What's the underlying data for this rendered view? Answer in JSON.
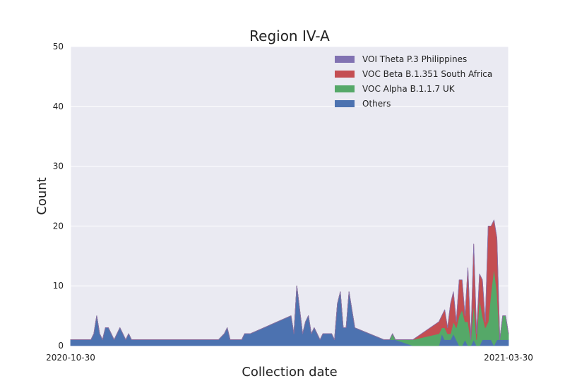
{
  "chart_data": {
    "type": "area",
    "stacked": true,
    "title": "Region IV-A",
    "xlabel": "Collection date",
    "ylabel": "Count",
    "ylim": [
      0,
      50
    ],
    "yticks": [
      0,
      10,
      20,
      30,
      40,
      50
    ],
    "xlim": [
      "2020-10-30",
      "2021-03-30"
    ],
    "xticks": [
      "2020-10-30",
      "2021-03-30"
    ],
    "grid": true,
    "legend_position": "top-right",
    "x": [
      "2020-10-30",
      "2020-11-06",
      "2020-11-07",
      "2020-11-08",
      "2020-11-09",
      "2020-11-10",
      "2020-11-11",
      "2020-11-12",
      "2020-11-13",
      "2020-11-14",
      "2020-11-15",
      "2020-11-16",
      "2020-11-17",
      "2020-11-18",
      "2020-11-19",
      "2020-11-20",
      "2020-12-20",
      "2020-12-22",
      "2020-12-23",
      "2020-12-24",
      "2020-12-28",
      "2020-12-29",
      "2020-12-31",
      "2021-01-14",
      "2021-01-15",
      "2021-01-16",
      "2021-01-17",
      "2021-01-18",
      "2021-01-19",
      "2021-01-20",
      "2021-01-21",
      "2021-01-22",
      "2021-01-23",
      "2021-01-24",
      "2021-01-25",
      "2021-01-26",
      "2021-01-27",
      "2021-01-28",
      "2021-01-29",
      "2021-01-30",
      "2021-01-31",
      "2021-02-01",
      "2021-02-02",
      "2021-02-03",
      "2021-02-05",
      "2021-02-15",
      "2021-02-16",
      "2021-02-17",
      "2021-02-18",
      "2021-02-19",
      "2021-02-25",
      "2021-03-06",
      "2021-03-07",
      "2021-03-08",
      "2021-03-09",
      "2021-03-10",
      "2021-03-11",
      "2021-03-12",
      "2021-03-13",
      "2021-03-14",
      "2021-03-15",
      "2021-03-16",
      "2021-03-17",
      "2021-03-18",
      "2021-03-19",
      "2021-03-20",
      "2021-03-21",
      "2021-03-22",
      "2021-03-23",
      "2021-03-24",
      "2021-03-25",
      "2021-03-26",
      "2021-03-27",
      "2021-03-28",
      "2021-03-29",
      "2021-03-30"
    ],
    "series": [
      {
        "name": "Others",
        "color": "#4c72b0",
        "values": [
          1,
          1,
          2,
          5,
          2,
          1,
          3,
          3,
          2,
          1,
          2,
          3,
          2,
          1,
          2,
          1,
          1,
          2,
          3,
          1,
          1,
          2,
          2,
          5,
          2,
          10,
          6,
          2,
          4,
          5,
          2,
          3,
          2,
          1,
          2,
          2,
          2,
          2,
          1,
          7,
          9,
          3,
          3,
          9,
          3,
          1,
          1,
          1,
          1,
          1,
          0,
          0,
          2,
          1,
          1,
          1,
          2,
          1,
          0,
          0,
          1,
          0,
          0,
          1,
          0,
          0,
          1,
          1,
          1,
          1,
          0,
          1,
          1,
          1,
          1,
          1
        ]
      },
      {
        "name": "VOC Alpha B.1.1.7 UK",
        "color": "#55a868",
        "values": [
          0,
          0,
          0,
          0,
          0,
          0,
          0,
          0,
          0,
          0,
          0,
          0,
          0,
          0,
          0,
          0,
          0,
          0,
          0,
          0,
          0,
          0,
          0,
          0,
          0,
          0,
          0,
          0,
          0,
          0,
          0,
          0,
          0,
          0,
          0,
          0,
          0,
          0,
          0,
          0,
          0,
          0,
          0,
          0,
          0,
          0,
          0,
          0,
          1,
          0,
          1,
          2,
          1,
          2,
          1,
          1,
          2,
          2,
          5,
          6,
          3,
          4,
          1,
          6,
          1,
          8,
          4,
          2,
          3,
          8,
          13,
          8,
          0,
          4,
          4,
          1
        ]
      },
      {
        "name": "VOC Beta B.1.351 South Africa",
        "color": "#c44e52",
        "values": [
          0,
          0,
          0,
          0,
          0,
          0,
          0,
          0,
          0,
          0,
          0,
          0,
          0,
          0,
          0,
          0,
          0,
          0,
          0,
          0,
          0,
          0,
          0,
          0,
          0,
          0,
          0,
          0,
          0,
          0,
          0,
          0,
          0,
          0,
          0,
          0,
          0,
          0,
          0,
          0,
          0,
          0,
          0,
          0,
          0,
          0,
          0,
          0,
          0,
          0,
          0,
          2,
          2,
          3,
          1,
          5,
          5,
          1,
          6,
          5,
          1,
          9,
          0,
          10,
          1,
          4,
          6,
          1,
          16,
          11,
          8,
          9,
          0,
          0,
          0,
          0
        ]
      },
      {
        "name": "VOI Theta P.3 Philippines",
        "color": "#8172b2",
        "values": [
          0,
          0,
          0,
          0,
          0,
          0,
          0,
          0,
          0,
          0,
          0,
          0,
          0,
          0,
          0,
          0,
          0,
          0,
          0,
          0,
          0,
          0,
          0,
          0,
          0,
          0,
          0,
          0,
          0,
          0,
          0,
          0,
          0,
          0,
          0,
          0,
          0,
          0,
          0,
          0,
          0,
          0,
          0,
          0,
          0,
          0,
          0,
          0,
          0,
          0,
          0,
          0,
          0,
          0,
          0,
          0,
          0,
          0,
          0,
          0,
          0,
          0,
          0,
          0,
          0,
          0,
          0,
          0,
          0,
          0,
          0,
          0,
          0,
          0,
          0,
          0
        ]
      }
    ],
    "legend": [
      {
        "label": "VOI Theta P.3 Philippines",
        "color": "#8172b2"
      },
      {
        "label": "VOC Beta B.1.351 South Africa",
        "color": "#c44e52"
      },
      {
        "label": "VOC Alpha B.1.1.7 UK",
        "color": "#55a868"
      },
      {
        "label": "Others",
        "color": "#4c72b0"
      }
    ]
  }
}
